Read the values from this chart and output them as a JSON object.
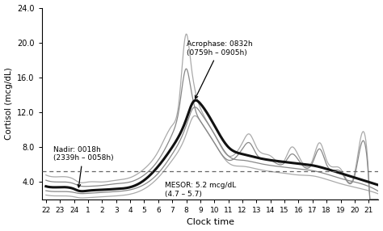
{
  "title": "",
  "xlabel": "Clock time",
  "ylabel": "Cortisol (mcg/dL)",
  "ylim": [
    2.0,
    24.0
  ],
  "yticks": [
    4.0,
    8.0,
    12.0,
    16.0,
    20.0,
    24.0
  ],
  "ytick_labels": [
    "4.0",
    "8.0",
    "12.0",
    "16.0",
    "20.0",
    "24.0"
  ],
  "xtick_labels": [
    "22",
    "23",
    "24",
    "1",
    "2",
    "3",
    "4",
    "5",
    "6",
    "7",
    "8",
    "9",
    "10",
    "11",
    "12",
    "13",
    "14",
    "15",
    "16",
    "17",
    "18",
    "19",
    "20",
    "21"
  ],
  "mesor": 5.2,
  "mesor_label": "MESOR: 5.2 mcg/dL\n(4.7 – 5.7)",
  "acrophase_label": "Acrophase: 0832h\n(0759h – 0905h)",
  "nadir_label": "Nadir: 0018h\n(2339h – 0058h)",
  "background_color": "#ffffff",
  "mean_color": "#111111",
  "ci_outer_color": "#aaaaaa",
  "ci_inner_color": "#888888",
  "mesor_line_color": "#666666"
}
